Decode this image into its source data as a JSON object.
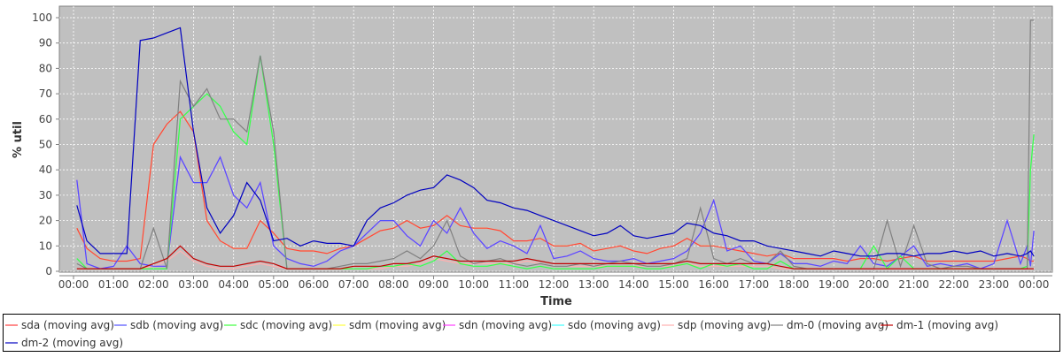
{
  "chart_data": {
    "type": "line",
    "title": "",
    "xlabel": "Time",
    "ylabel": "% util",
    "ylim": [
      0,
      100
    ],
    "yticks": [
      "0",
      "10",
      "20",
      "30",
      "40",
      "50",
      "60",
      "70",
      "80",
      "90",
      "100"
    ],
    "xticks": [
      "00:00",
      "01:00",
      "02:00",
      "03:00",
      "04:00",
      "05:00",
      "06:00",
      "07:00",
      "08:00",
      "09:00",
      "10:00",
      "11:00",
      "12:00",
      "13:00",
      "14:00",
      "15:00",
      "16:00",
      "17:00",
      "18:00",
      "19:00",
      "20:00",
      "21:00",
      "22:00",
      "23:00",
      "00:00"
    ],
    "grid": true,
    "plot_background": "#c0c0c0",
    "legend_placement": "bottom",
    "x": [
      "00:05",
      "00:20",
      "00:40",
      "01:00",
      "01:20",
      "01:40",
      "02:00",
      "02:20",
      "02:40",
      "03:00",
      "03:20",
      "03:40",
      "04:00",
      "04:20",
      "04:40",
      "05:00",
      "05:20",
      "05:40",
      "06:00",
      "06:20",
      "06:40",
      "07:00",
      "07:20",
      "07:40",
      "08:00",
      "08:20",
      "08:40",
      "09:00",
      "09:20",
      "09:40",
      "10:00",
      "10:20",
      "10:40",
      "11:00",
      "11:20",
      "11:40",
      "12:00",
      "12:20",
      "12:40",
      "13:00",
      "13:20",
      "13:40",
      "14:00",
      "14:20",
      "14:40",
      "15:00",
      "15:20",
      "15:40",
      "16:00",
      "16:20",
      "16:40",
      "17:00",
      "17:20",
      "17:40",
      "18:00",
      "18:20",
      "18:40",
      "19:00",
      "19:20",
      "19:40",
      "20:00",
      "20:20",
      "20:40",
      "21:00",
      "21:20",
      "21:40",
      "22:00",
      "22:20",
      "22:40",
      "23:00",
      "23:20",
      "23:40",
      "23:50",
      "23:55",
      "24:00"
    ],
    "series": [
      {
        "name": "sda (moving avg)",
        "color": "#ff4040",
        "values": [
          17,
          9,
          5,
          4,
          4,
          5,
          50,
          58,
          63,
          55,
          20,
          12,
          9,
          9,
          20,
          15,
          9,
          8,
          8,
          7,
          9,
          10,
          13,
          16,
          17,
          20,
          17,
          18,
          22,
          18,
          17,
          17,
          16,
          12,
          12,
          13,
          10,
          10,
          11,
          8,
          9,
          10,
          8,
          7,
          9,
          10,
          13,
          10,
          10,
          9,
          8,
          7,
          6,
          7,
          5,
          5,
          5,
          5,
          4,
          5,
          5,
          4,
          5,
          6,
          4,
          4,
          4,
          4,
          4,
          4,
          5,
          6,
          5,
          4,
          4
        ]
      },
      {
        "name": "sdb (moving avg)",
        "color": "#5050ff",
        "values": [
          36,
          3,
          1,
          2,
          10,
          3,
          2,
          2,
          45,
          35,
          35,
          45,
          30,
          25,
          35,
          10,
          5,
          3,
          2,
          4,
          8,
          10,
          15,
          20,
          20,
          14,
          10,
          20,
          15,
          25,
          15,
          9,
          12,
          10,
          7,
          18,
          5,
          6,
          8,
          5,
          4,
          4,
          5,
          3,
          4,
          5,
          8,
          15,
          28,
          8,
          10,
          4,
          3,
          7,
          3,
          3,
          2,
          4,
          3,
          10,
          3,
          2,
          6,
          10,
          2,
          3,
          2,
          3,
          1,
          3,
          20,
          3,
          10,
          2,
          16
        ]
      },
      {
        "name": "sdc (moving avg)",
        "color": "#40ff40",
        "values": [
          5,
          1,
          1,
          1,
          1,
          1,
          1,
          1,
          60,
          65,
          70,
          65,
          55,
          50,
          85,
          50,
          1,
          1,
          1,
          1,
          1,
          1,
          1,
          2,
          2,
          3,
          2,
          4,
          8,
          3,
          2,
          2,
          3,
          2,
          1,
          2,
          1,
          1,
          1,
          1,
          2,
          2,
          2,
          1,
          1,
          2,
          3,
          1,
          3,
          2,
          3,
          1,
          1,
          4,
          1,
          1,
          1,
          1,
          1,
          1,
          10,
          1,
          6,
          1,
          1,
          1,
          1,
          1,
          1,
          1,
          1,
          1,
          2,
          40,
          54
        ]
      },
      {
        "name": "sdm (moving avg)",
        "color": "#ffff40",
        "values": [
          17,
          9,
          5,
          4,
          4,
          5,
          50,
          58,
          63,
          55,
          20,
          12,
          9,
          9,
          20,
          15,
          9,
          8,
          8,
          7,
          9,
          10,
          13,
          16,
          17,
          20,
          17,
          18,
          22,
          18,
          17,
          17,
          16,
          12,
          12,
          13,
          10,
          10,
          11,
          8,
          9,
          10,
          8,
          7,
          9,
          10,
          13,
          10,
          10,
          9,
          8,
          7,
          6,
          7,
          5,
          5,
          5,
          5,
          4,
          5,
          5,
          4,
          5,
          6,
          4,
          4,
          4,
          4,
          4,
          4,
          5,
          6,
          5,
          4,
          4
        ]
      },
      {
        "name": "sdn (moving avg)",
        "color": "#ff40ff",
        "values": [
          36,
          3,
          1,
          2,
          10,
          3,
          2,
          2,
          45,
          35,
          35,
          45,
          30,
          25,
          35,
          10,
          5,
          3,
          2,
          4,
          8,
          10,
          15,
          20,
          20,
          14,
          10,
          20,
          15,
          25,
          15,
          9,
          12,
          10,
          7,
          18,
          5,
          6,
          8,
          5,
          4,
          4,
          5,
          3,
          4,
          5,
          8,
          15,
          28,
          8,
          10,
          4,
          3,
          7,
          3,
          3,
          2,
          4,
          3,
          10,
          3,
          2,
          6,
          10,
          2,
          3,
          2,
          3,
          1,
          3,
          20,
          3,
          10,
          2,
          16
        ]
      },
      {
        "name": "sdo (moving avg)",
        "color": "#40ffff",
        "values": [
          5,
          1,
          1,
          1,
          1,
          1,
          1,
          1,
          60,
          65,
          70,
          65,
          55,
          50,
          85,
          50,
          1,
          1,
          1,
          1,
          1,
          1,
          1,
          2,
          2,
          3,
          2,
          4,
          8,
          3,
          2,
          2,
          3,
          2,
          1,
          2,
          1,
          1,
          1,
          1,
          2,
          2,
          2,
          1,
          1,
          2,
          3,
          1,
          3,
          2,
          3,
          1,
          1,
          4,
          1,
          1,
          1,
          1,
          1,
          1,
          10,
          1,
          6,
          1,
          1,
          1,
          1,
          1,
          1,
          1,
          1,
          1,
          2,
          40,
          54
        ]
      },
      {
        "name": "sdp (moving avg)",
        "color": "#ffb0b0",
        "values": [
          1,
          1,
          1,
          1,
          1,
          1,
          2,
          4,
          8,
          4,
          2,
          1,
          1,
          2,
          3,
          2,
          1,
          1,
          1,
          1,
          1,
          1,
          1,
          1,
          2,
          2,
          3,
          5,
          4,
          3,
          3,
          3,
          3,
          3,
          4,
          3,
          2,
          2,
          2,
          2,
          2,
          2,
          2,
          2,
          2,
          2,
          3,
          2,
          2,
          2,
          2,
          2,
          2,
          1,
          1,
          1,
          1,
          1,
          1,
          1,
          1,
          1,
          1,
          1,
          1,
          1,
          1,
          1,
          1,
          1,
          1,
          1,
          1,
          1,
          1
        ]
      },
      {
        "name": "dm-0 (moving avg)",
        "color": "#808080",
        "values": [
          3,
          1,
          1,
          1,
          1,
          1,
          17,
          1,
          75,
          65,
          72,
          60,
          60,
          55,
          85,
          55,
          1,
          1,
          1,
          1,
          2,
          3,
          3,
          4,
          5,
          8,
          5,
          10,
          20,
          6,
          3,
          4,
          5,
          3,
          2,
          3,
          2,
          2,
          3,
          2,
          3,
          4,
          3,
          2,
          2,
          3,
          5,
          25,
          5,
          3,
          5,
          3,
          3,
          8,
          2,
          1,
          1,
          1,
          1,
          1,
          1,
          20,
          2,
          18,
          3,
          1,
          2,
          2,
          1,
          1,
          1,
          1,
          1,
          99,
          99
        ]
      },
      {
        "name": "dm-1 (moving avg)",
        "color": "#c00000",
        "values": [
          1,
          1,
          1,
          1,
          1,
          1,
          3,
          5,
          10,
          5,
          3,
          2,
          2,
          3,
          4,
          3,
          1,
          1,
          1,
          1,
          1,
          2,
          2,
          2,
          3,
          3,
          4,
          6,
          5,
          4,
          4,
          4,
          4,
          4,
          5,
          4,
          3,
          3,
          3,
          3,
          3,
          3,
          3,
          3,
          3,
          3,
          4,
          3,
          3,
          3,
          3,
          3,
          3,
          2,
          1,
          1,
          1,
          1,
          1,
          1,
          1,
          1,
          1,
          1,
          1,
          1,
          1,
          1,
          1,
          1,
          1,
          1,
          1,
          1,
          1
        ]
      },
      {
        "name": "dm-2 (moving avg)",
        "color": "#0000c0",
        "values": [
          26,
          12,
          7,
          7,
          7,
          91,
          92,
          94,
          96,
          55,
          25,
          15,
          22,
          35,
          28,
          12,
          13,
          10,
          12,
          11,
          11,
          10,
          20,
          25,
          27,
          30,
          32,
          33,
          38,
          36,
          33,
          28,
          27,
          25,
          24,
          22,
          20,
          18,
          16,
          14,
          15,
          18,
          14,
          13,
          14,
          15,
          19,
          18,
          15,
          14,
          12,
          12,
          10,
          9,
          8,
          7,
          6,
          8,
          7,
          6,
          6,
          7,
          7,
          6,
          7,
          7,
          8,
          7,
          8,
          6,
          7,
          6,
          7,
          8,
          6
        ]
      }
    ]
  }
}
